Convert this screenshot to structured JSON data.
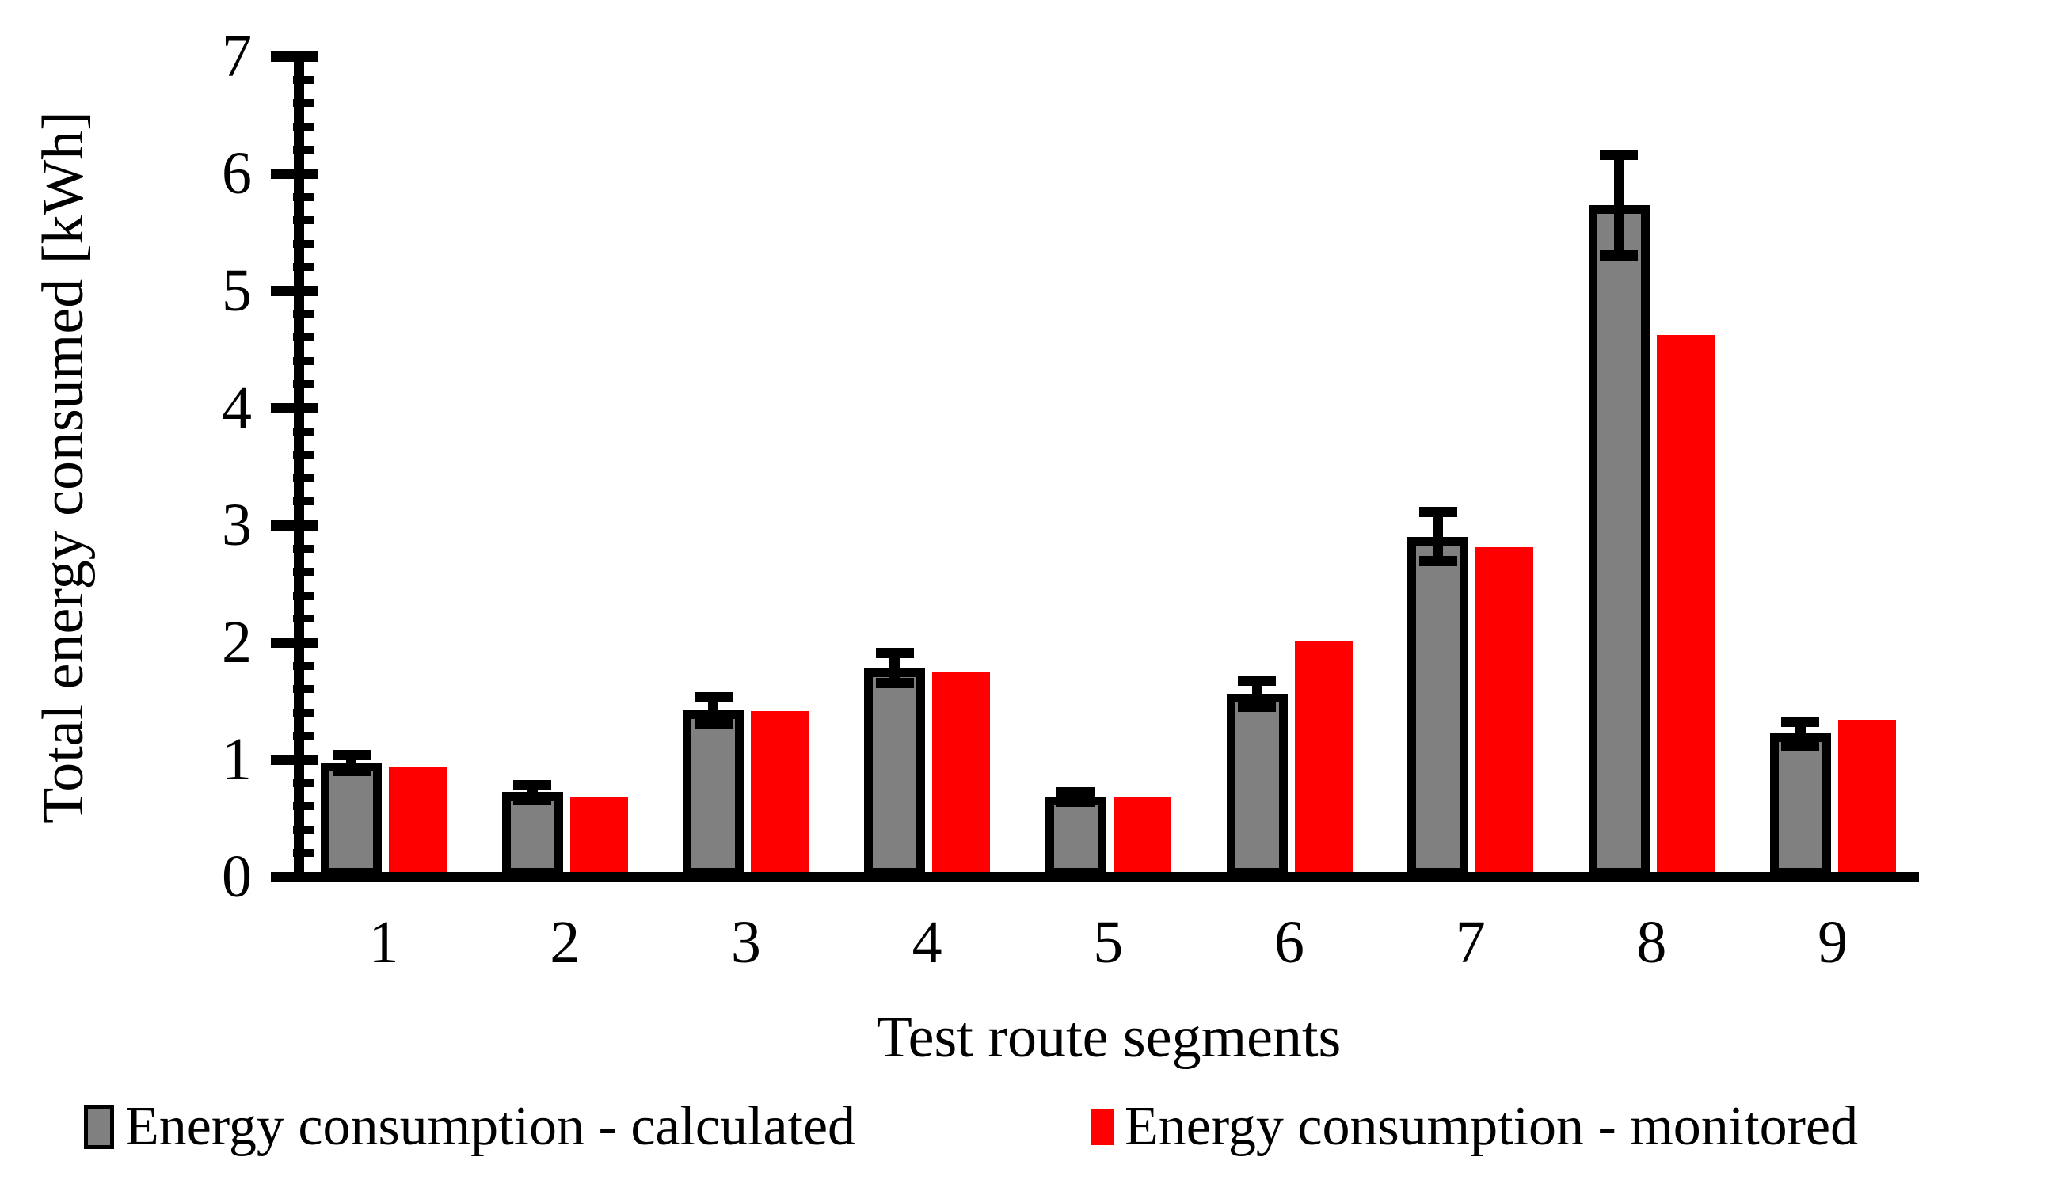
{
  "chart_data": {
    "type": "bar",
    "title": "",
    "xlabel": "Test route segments",
    "ylabel": "Total energy consumed [kWh]",
    "categories": [
      "1",
      "2",
      "3",
      "4",
      "5",
      "6",
      "7",
      "8",
      "9"
    ],
    "series": [
      {
        "name": "Energy consumption - calculated",
        "color": "#808080",
        "border_color": "#000000",
        "values": [
          0.97,
          0.72,
          1.42,
          1.78,
          0.68,
          1.56,
          2.9,
          5.73,
          1.22
        ],
        "error_bars": [
          0.07,
          0.06,
          0.11,
          0.13,
          0.04,
          0.11,
          0.21,
          0.43,
          0.1
        ]
      },
      {
        "name": "Energy consumption - monitored",
        "color": "#ff0000",
        "values": [
          0.94,
          0.68,
          1.41,
          1.75,
          0.68,
          2.01,
          2.81,
          4.62,
          1.34
        ]
      }
    ],
    "ylim": [
      0,
      7
    ],
    "y_major_ticks": [
      0,
      1,
      2,
      3,
      4,
      5,
      6,
      7
    ],
    "y_minor_tick_step": 0.2,
    "grid": false,
    "legend_position": "bottom",
    "axis_color": "#000000",
    "background_color": "#ffffff"
  }
}
